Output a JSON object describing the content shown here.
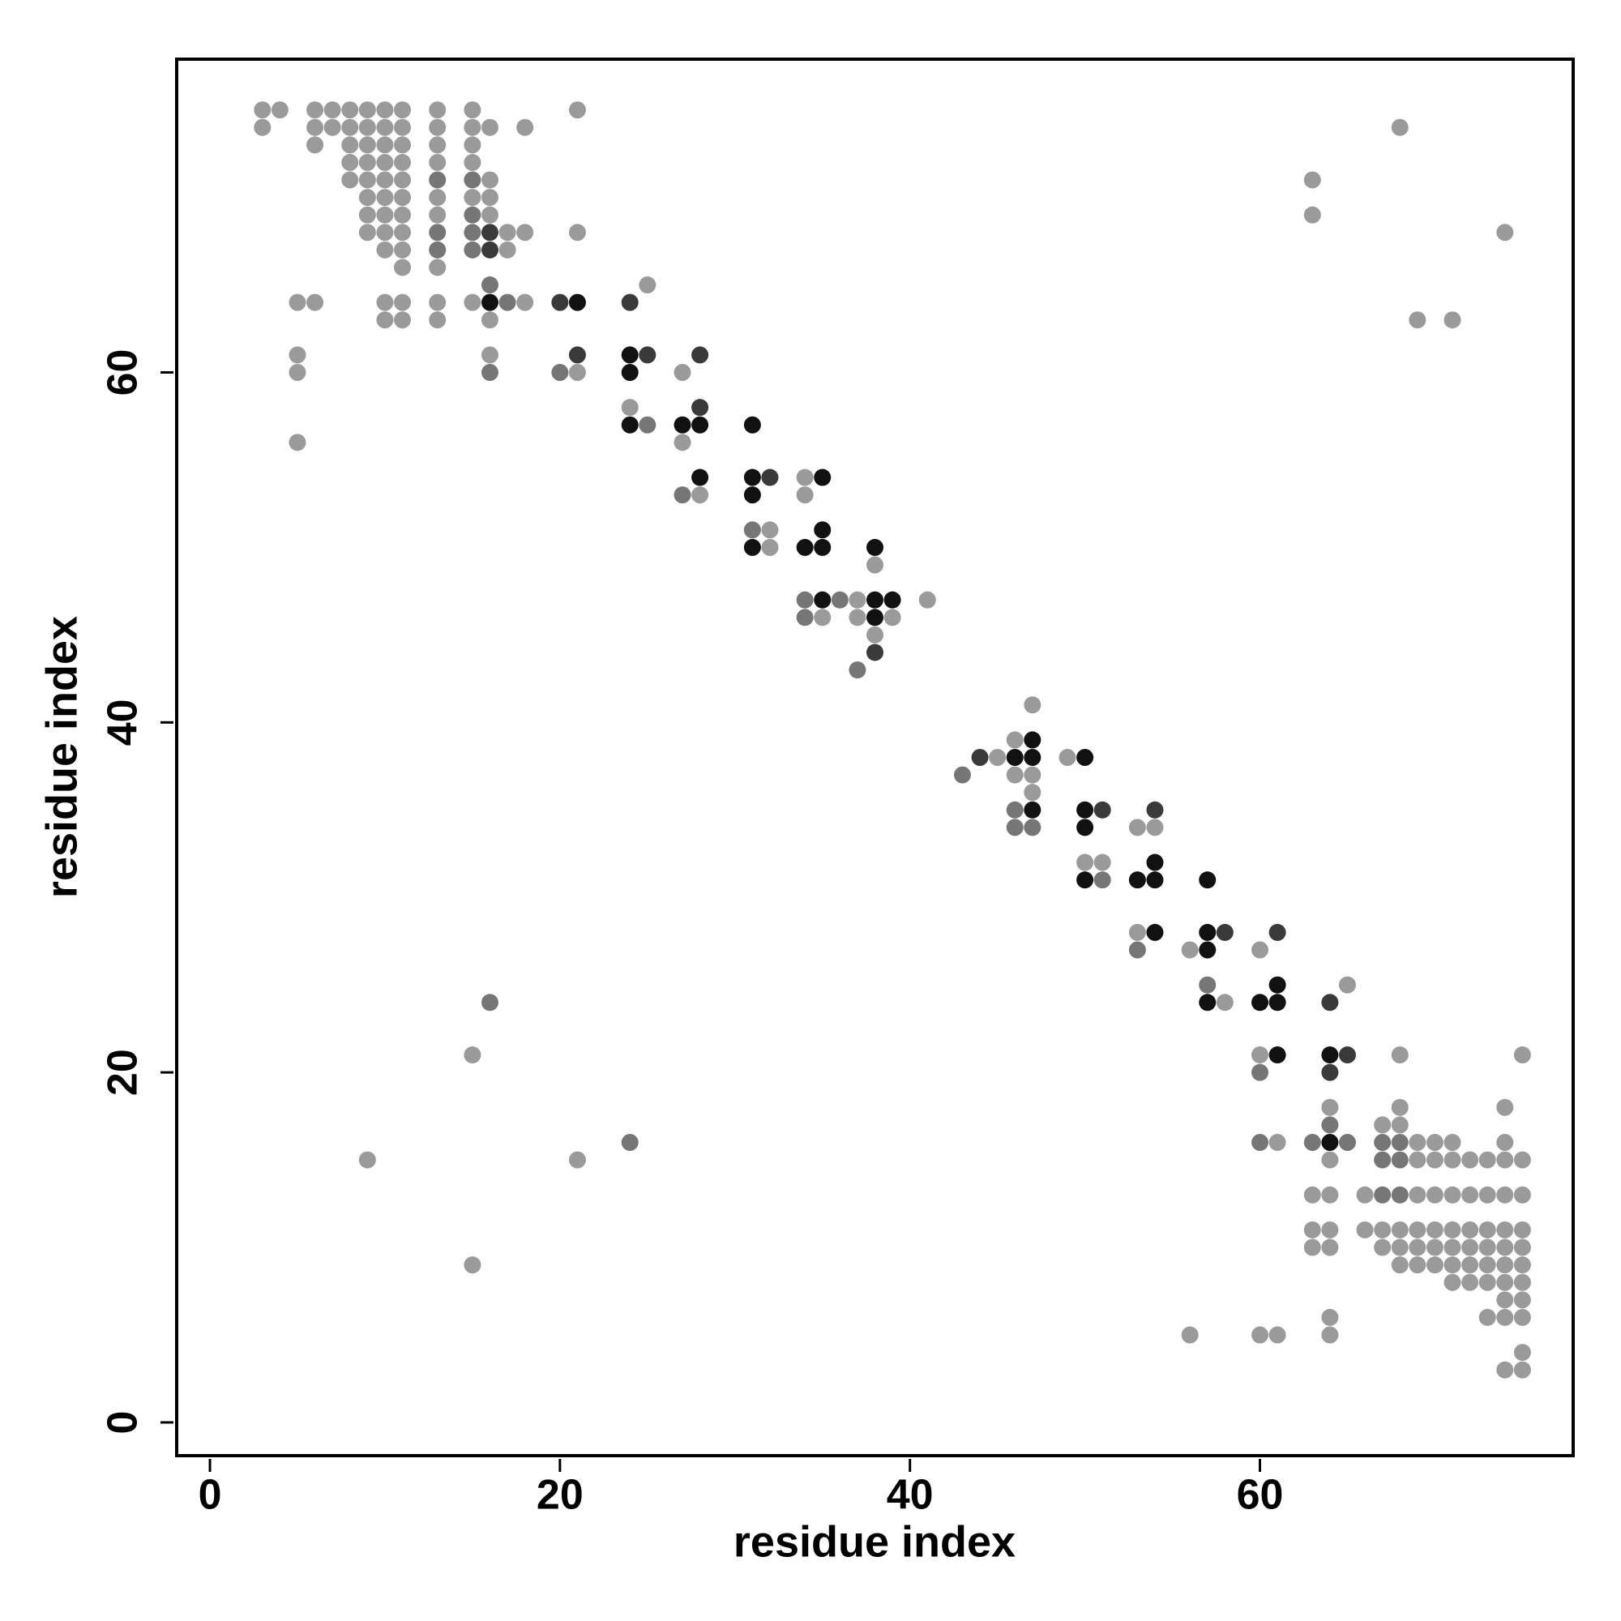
{
  "chart_data": {
    "type": "scatter",
    "x_label": "residue index",
    "y_label": "residue index",
    "xlim": [
      -1.9,
      77.9
    ],
    "ylim": [
      -1.9,
      77.9
    ],
    "xticks": [
      0,
      20,
      40,
      60
    ],
    "yticks": [
      0,
      20,
      40,
      60
    ],
    "grid": false,
    "series": [
      {
        "color": "#9a9a9a",
        "x": [
          3,
          4,
          6,
          7,
          8,
          9,
          10,
          11,
          13,
          15,
          21,
          3,
          6,
          7,
          8,
          9,
          10,
          11,
          13,
          15,
          16,
          18,
          68,
          6,
          8,
          9,
          10,
          11,
          13,
          15,
          8,
          9,
          10,
          11,
          13,
          15,
          8,
          9,
          10,
          11,
          16,
          63,
          9,
          10,
          11,
          13,
          15,
          16,
          9,
          10,
          11,
          13,
          16,
          63,
          9,
          10,
          11,
          17,
          18,
          21,
          74,
          10,
          11,
          17,
          11,
          13,
          25,
          5,
          6,
          10,
          11,
          13,
          15,
          18,
          10,
          11,
          13,
          16,
          69,
          71,
          5,
          16,
          5,
          21,
          27,
          24,
          5,
          27,
          34,
          28,
          34,
          32,
          32,
          38,
          37,
          41,
          35,
          37,
          39,
          38,
          47,
          46,
          45,
          49,
          46,
          47,
          47,
          53,
          54,
          50,
          51,
          53,
          56,
          60,
          65,
          58,
          15,
          60,
          68,
          75,
          64,
          68,
          74,
          67,
          68,
          61,
          69,
          70,
          71,
          74,
          9,
          21,
          64,
          69,
          70,
          71,
          72,
          73,
          74,
          75,
          63,
          64,
          66,
          69,
          70,
          71,
          72,
          73,
          74,
          75,
          63,
          64,
          66,
          67,
          68,
          69,
          70,
          71,
          72,
          73,
          74,
          75,
          63,
          64,
          67,
          68,
          69,
          70,
          71,
          72,
          73,
          74,
          75,
          15,
          68,
          69,
          70,
          71,
          72,
          73,
          74,
          75,
          71,
          72,
          73,
          74,
          75,
          74,
          75,
          64,
          73,
          74,
          75,
          56,
          60,
          61,
          64,
          75,
          74,
          75
        ],
        "y": [
          75,
          75,
          75,
          75,
          75,
          75,
          75,
          75,
          75,
          75,
          75,
          74,
          74,
          74,
          74,
          74,
          74,
          74,
          74,
          74,
          74,
          74,
          74,
          73,
          73,
          73,
          73,
          73,
          73,
          73,
          72,
          72,
          72,
          72,
          72,
          72,
          71,
          71,
          71,
          71,
          71,
          71,
          70,
          70,
          70,
          70,
          70,
          70,
          69,
          69,
          69,
          69,
          69,
          69,
          68,
          68,
          68,
          68,
          68,
          68,
          68,
          67,
          67,
          67,
          66,
          66,
          65,
          64,
          64,
          64,
          64,
          64,
          64,
          64,
          63,
          63,
          63,
          63,
          63,
          63,
          61,
          61,
          60,
          60,
          60,
          58,
          56,
          56,
          54,
          53,
          53,
          51,
          50,
          49,
          47,
          47,
          46,
          46,
          46,
          45,
          41,
          39,
          38,
          38,
          37,
          37,
          36,
          34,
          34,
          32,
          32,
          28,
          27,
          27,
          25,
          24,
          21,
          21,
          21,
          21,
          18,
          18,
          18,
          17,
          17,
          16,
          16,
          16,
          16,
          16,
          15,
          15,
          15,
          15,
          15,
          15,
          15,
          15,
          15,
          15,
          13,
          13,
          13,
          13,
          13,
          13,
          13,
          13,
          13,
          13,
          11,
          11,
          11,
          11,
          11,
          11,
          11,
          11,
          11,
          11,
          11,
          11,
          10,
          10,
          10,
          10,
          10,
          10,
          10,
          10,
          10,
          10,
          10,
          9,
          9,
          9,
          9,
          9,
          9,
          9,
          9,
          9,
          8,
          8,
          8,
          8,
          8,
          7,
          7,
          6,
          6,
          6,
          6,
          5,
          5,
          5,
          5,
          4,
          3,
          3
        ]
      },
      {
        "color": "#767676",
        "x": [
          13,
          15,
          15,
          13,
          15,
          13,
          15,
          16,
          17,
          16,
          20,
          25,
          27,
          31,
          34,
          36,
          34,
          37,
          43,
          46,
          46,
          47,
          51,
          53,
          57,
          16,
          60,
          64,
          24,
          60,
          63,
          65,
          67,
          68,
          67,
          68,
          67,
          68
        ],
        "y": [
          71,
          71,
          69,
          68,
          68,
          67,
          67,
          65,
          64,
          60,
          60,
          57,
          53,
          51,
          47,
          47,
          46,
          43,
          37,
          35,
          34,
          34,
          31,
          27,
          25,
          24,
          20,
          17,
          16,
          16,
          16,
          16,
          16,
          16,
          15,
          15,
          13,
          13
        ]
      },
      {
        "color": "#3a3a3a",
        "x": [
          16,
          16,
          20,
          24,
          21,
          25,
          28,
          28,
          32,
          38,
          44,
          51,
          54,
          58,
          61,
          64,
          65,
          64
        ],
        "y": [
          68,
          67,
          64,
          64,
          61,
          61,
          61,
          58,
          54,
          44,
          38,
          35,
          35,
          28,
          28,
          24,
          21,
          20
        ]
      },
      {
        "color": "#111111",
        "x": [
          16,
          21,
          24,
          24,
          24,
          27,
          28,
          31,
          28,
          31,
          35,
          31,
          35,
          31,
          34,
          35,
          38,
          35,
          38,
          39,
          38,
          47,
          46,
          47,
          50,
          47,
          50,
          50,
          54,
          50,
          53,
          54,
          57,
          54,
          57,
          57,
          61,
          57,
          60,
          61,
          61,
          64,
          64
        ],
        "y": [
          64,
          64,
          61,
          60,
          57,
          57,
          57,
          57,
          54,
          54,
          54,
          53,
          51,
          50,
          50,
          50,
          50,
          47,
          47,
          47,
          46,
          39,
          38,
          38,
          38,
          35,
          35,
          34,
          32,
          31,
          31,
          31,
          31,
          28,
          28,
          27,
          25,
          24,
          24,
          24,
          21,
          21,
          16
        ]
      }
    ]
  }
}
